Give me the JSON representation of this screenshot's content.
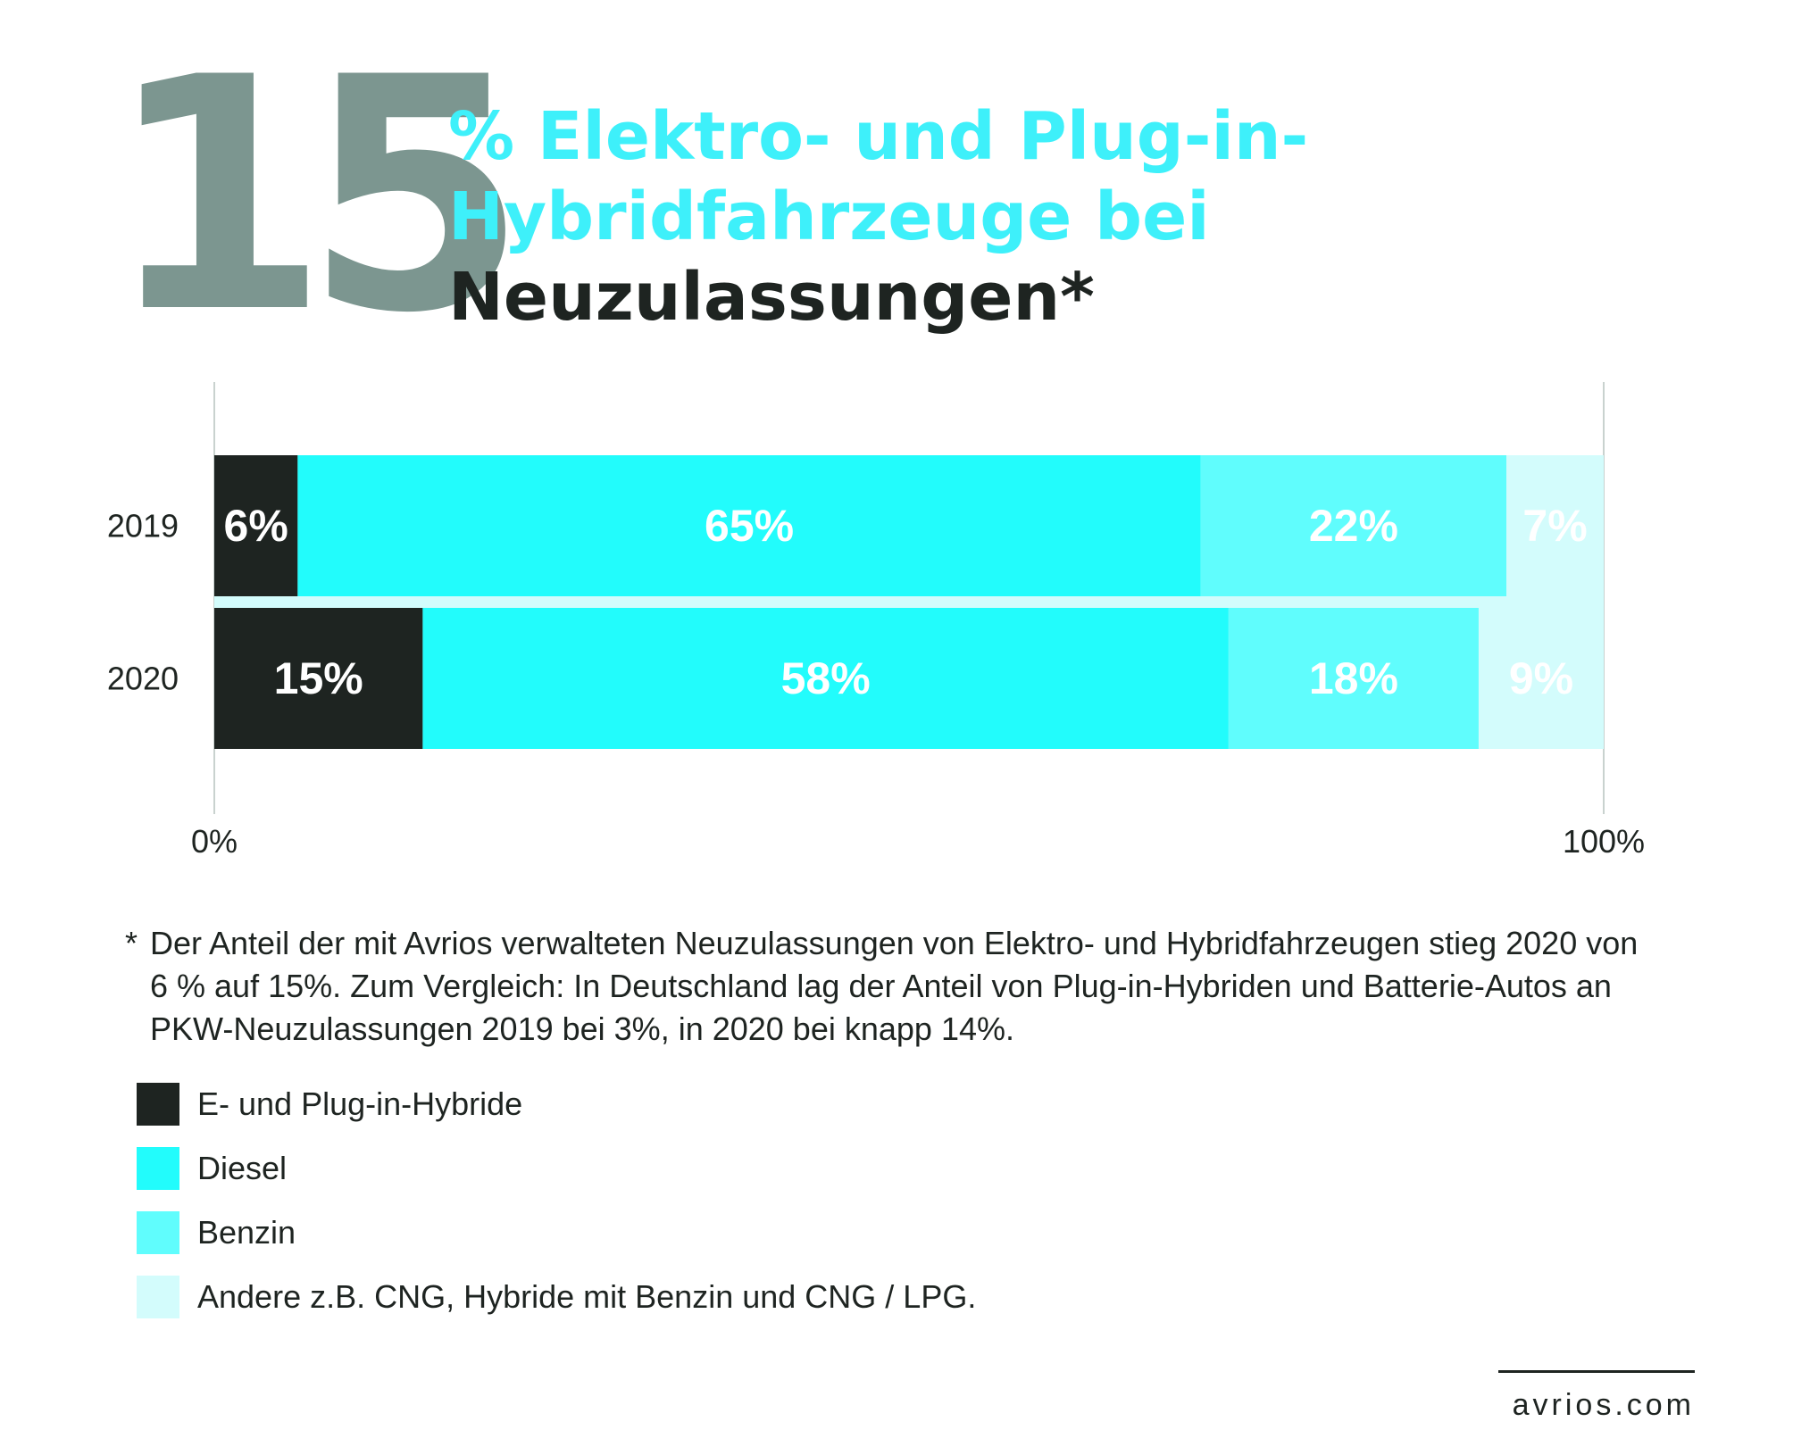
{
  "header": {
    "big_number": "15",
    "title_line1": "% Elektro- und Plug-in-",
    "title_line2": "Hybridfahrzeuge bei",
    "title_line3": "Neuzulassungen*"
  },
  "chart_data": {
    "type": "bar",
    "orientation": "horizontal",
    "stacked": true,
    "normalized": true,
    "categories": [
      "2019",
      "2020"
    ],
    "series": [
      {
        "name": "E- und Plug-in-Hybride",
        "values": [
          6,
          15
        ],
        "labels": [
          "6%",
          "15%"
        ],
        "color": "#1e2421"
      },
      {
        "name": "Diesel",
        "values": [
          65,
          58
        ],
        "labels": [
          "65%",
          "58%"
        ],
        "color": "#22fcfc"
      },
      {
        "name": "Benzin",
        "values": [
          22,
          18
        ],
        "labels": [
          "22%",
          "18%"
        ],
        "color": "#60fdfd"
      },
      {
        "name": "Andere z.B. CNG, Hybride mit Benzin und CNG / LPG.",
        "values": [
          7,
          9
        ],
        "labels": [
          "7%",
          "9%"
        ],
        "color": "#d3fcfc"
      }
    ],
    "xlim": [
      0,
      100
    ],
    "x_tick_labels": [
      "0%",
      "100%"
    ],
    "grid": false,
    "legend_position": "bottom-left"
  },
  "footnote": {
    "marker": "*",
    "text": "Der Anteil der mit Avrios verwalteten Neuzulassungen von Elektro- und Hybridfahrzeugen stieg 2020 von 6 % auf 15%. Zum Vergleich: In Deutschland lag der Anteil von Plug-in-Hybriden und Batterie-Autos an PKW-Neuzulassungen 2019 bei 3%, in 2020 bei knapp 14%."
  },
  "footer": {
    "url": "avrios.com"
  },
  "colors": {
    "big_number": "#7c9690",
    "accent": "#3ef0fa",
    "dark": "#1e2421"
  }
}
